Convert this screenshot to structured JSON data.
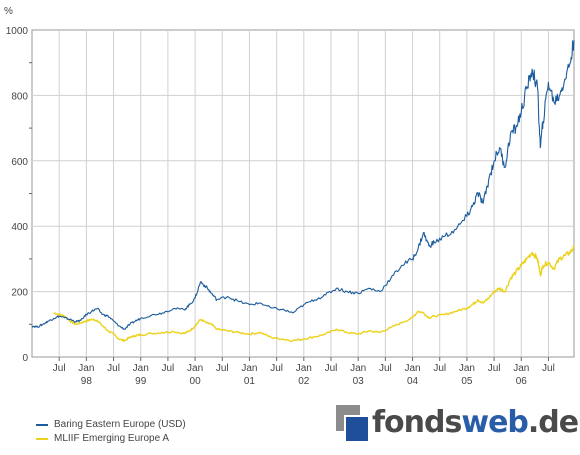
{
  "chart_data": {
    "type": "line",
    "y_unit": "%",
    "ylim": [
      0,
      1000
    ],
    "y_ticks": [
      0,
      200,
      400,
      600,
      800,
      1000
    ],
    "x_range": [
      1997.0,
      2006.97
    ],
    "grid": true,
    "x_tick_labels": [
      {
        "month": "Jul",
        "year": ""
      },
      {
        "month": "Jan",
        "year": "98"
      },
      {
        "month": "Jul",
        "year": ""
      },
      {
        "month": "Jan",
        "year": "99"
      },
      {
        "month": "Jul",
        "year": ""
      },
      {
        "month": "Jan",
        "year": "00"
      },
      {
        "month": "Jul",
        "year": ""
      },
      {
        "month": "Jan",
        "year": "01"
      },
      {
        "month": "Jul",
        "year": ""
      },
      {
        "month": "Jan",
        "year": "02"
      },
      {
        "month": "Jul",
        "year": ""
      },
      {
        "month": "Jan",
        "year": "03"
      },
      {
        "month": "Jul",
        "year": ""
      },
      {
        "month": "Jan",
        "year": "04"
      },
      {
        "month": "Jul",
        "year": ""
      },
      {
        "month": "Jan",
        "year": "05"
      },
      {
        "month": "Jul",
        "year": ""
      },
      {
        "month": "Jan",
        "year": "06"
      },
      {
        "month": "Jul",
        "year": ""
      }
    ],
    "x_tick_positions": [
      1997.5,
      1998.0,
      1998.5,
      1999.0,
      1999.5,
      2000.0,
      2000.5,
      2001.0,
      2001.5,
      2002.0,
      2002.5,
      2003.0,
      2003.5,
      2004.0,
      2004.5,
      2005.0,
      2005.5,
      2006.0,
      2006.5
    ],
    "series": [
      {
        "name": "Baring Eastern Europe (USD)",
        "color": "#1c5c9c",
        "x": [
          1997.0,
          1997.1,
          1997.2,
          1997.3,
          1997.4,
          1997.5,
          1997.6,
          1997.7,
          1997.8,
          1997.9,
          1998.0,
          1998.1,
          1998.2,
          1998.3,
          1998.4,
          1998.5,
          1998.6,
          1998.7,
          1998.8,
          1998.9,
          1999.0,
          1999.2,
          1999.4,
          1999.6,
          1999.8,
          1999.9,
          2000.0,
          2000.1,
          2000.2,
          2000.3,
          2000.4,
          2000.6,
          2000.8,
          2001.0,
          2001.2,
          2001.4,
          2001.6,
          2001.8,
          2002.0,
          2002.2,
          2002.4,
          2002.6,
          2002.8,
          2003.0,
          2003.2,
          2003.4,
          2003.6,
          2003.8,
          2004.0,
          2004.1,
          2004.2,
          2004.3,
          2004.4,
          2004.6,
          2004.8,
          2005.0,
          2005.1,
          2005.2,
          2005.3,
          2005.4,
          2005.5,
          2005.6,
          2005.7,
          2005.8,
          2005.9,
          2006.0,
          2006.1,
          2006.2,
          2006.3,
          2006.35,
          2006.4,
          2006.5,
          2006.6,
          2006.7,
          2006.8,
          2006.9,
          2006.97
        ],
        "values": [
          95,
          92,
          100,
          110,
          118,
          125,
          120,
          115,
          108,
          112,
          130,
          140,
          148,
          130,
          125,
          110,
          95,
          85,
          100,
          110,
          118,
          128,
          135,
          148,
          145,
          160,
          180,
          230,
          215,
          195,
          175,
          185,
          170,
          160,
          165,
          150,
          145,
          135,
          160,
          175,
          190,
          210,
          200,
          195,
          210,
          200,
          240,
          280,
          300,
          330,
          380,
          340,
          350,
          370,
          390,
          430,
          460,
          500,
          470,
          540,
          600,
          640,
          580,
          680,
          700,
          750,
          820,
          880,
          820,
          640,
          720,
          840,
          780,
          800,
          850,
          900,
          970
        ]
      },
      {
        "name": "MLIIF Emerging Europe A",
        "color": "#ecd21c",
        "x": [
          1997.4,
          1997.5,
          1997.6,
          1997.7,
          1997.8,
          1997.9,
          1998.0,
          1998.1,
          1998.2,
          1998.3,
          1998.4,
          1998.5,
          1998.6,
          1998.7,
          1998.8,
          1998.9,
          1999.0,
          1999.2,
          1999.4,
          1999.6,
          1999.8,
          1999.9,
          2000.0,
          2000.1,
          2000.2,
          2000.3,
          2000.4,
          2000.6,
          2000.8,
          2001.0,
          2001.2,
          2001.4,
          2001.6,
          2001.8,
          2002.0,
          2002.2,
          2002.4,
          2002.6,
          2002.8,
          2003.0,
          2003.2,
          2003.4,
          2003.6,
          2003.8,
          2004.0,
          2004.1,
          2004.2,
          2004.3,
          2004.4,
          2004.6,
          2004.8,
          2005.0,
          2005.1,
          2005.2,
          2005.3,
          2005.4,
          2005.5,
          2005.6,
          2005.7,
          2005.8,
          2005.9,
          2006.0,
          2006.1,
          2006.2,
          2006.3,
          2006.35,
          2006.4,
          2006.5,
          2006.6,
          2006.7,
          2006.8,
          2006.9,
          2006.97
        ],
        "values": [
          135,
          130,
          125,
          110,
          100,
          105,
          110,
          115,
          112,
          95,
          80,
          70,
          55,
          50,
          60,
          65,
          68,
          72,
          75,
          78,
          72,
          80,
          95,
          115,
          105,
          100,
          85,
          80,
          75,
          70,
          75,
          60,
          55,
          50,
          55,
          62,
          70,
          85,
          75,
          70,
          80,
          75,
          90,
          105,
          120,
          140,
          135,
          120,
          125,
          130,
          140,
          150,
          160,
          175,
          165,
          180,
          200,
          210,
          200,
          240,
          260,
          280,
          300,
          320,
          300,
          250,
          280,
          290,
          270,
          300,
          310,
          320,
          335
        ]
      }
    ]
  },
  "legend": [
    {
      "label": "Baring Eastern Europe (USD)",
      "color": "#1c5c9c"
    },
    {
      "label": "MLIIF Emerging Europe A",
      "color": "#ecd21c"
    }
  ],
  "logo": {
    "part1": "fonds",
    "part2": "web",
    "part3": ".de"
  }
}
